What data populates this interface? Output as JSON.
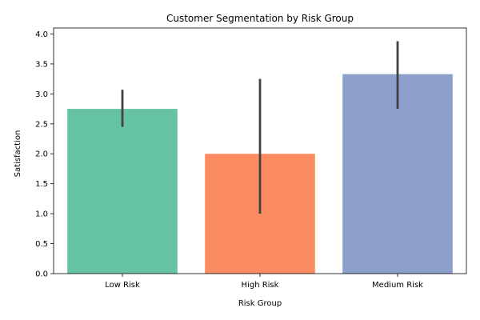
{
  "chart_data": {
    "type": "bar",
    "title": "Customer Segmentation by Risk Group",
    "xlabel": "Risk Group",
    "ylabel": "Satisfaction",
    "categories": [
      "Low Risk",
      "High Risk",
      "Medium Risk"
    ],
    "values": [
      2.75,
      2.0,
      3.33
    ],
    "error_low": [
      2.45,
      1.0,
      2.75
    ],
    "error_high": [
      3.07,
      3.25,
      3.88
    ],
    "ylim": [
      0,
      4.1
    ],
    "yticks": [
      0.0,
      0.5,
      1.0,
      1.5,
      2.0,
      2.5,
      3.0,
      3.5,
      4.0
    ],
    "ytick_labels": [
      "0.0",
      "0.5",
      "1.0",
      "1.5",
      "2.0",
      "2.5",
      "3.0",
      "3.5",
      "4.0"
    ],
    "colors": [
      "#66c2a5",
      "#fc8d62",
      "#8da0cb"
    ],
    "error_color": "#424242",
    "grid": false,
    "legend": "none"
  }
}
